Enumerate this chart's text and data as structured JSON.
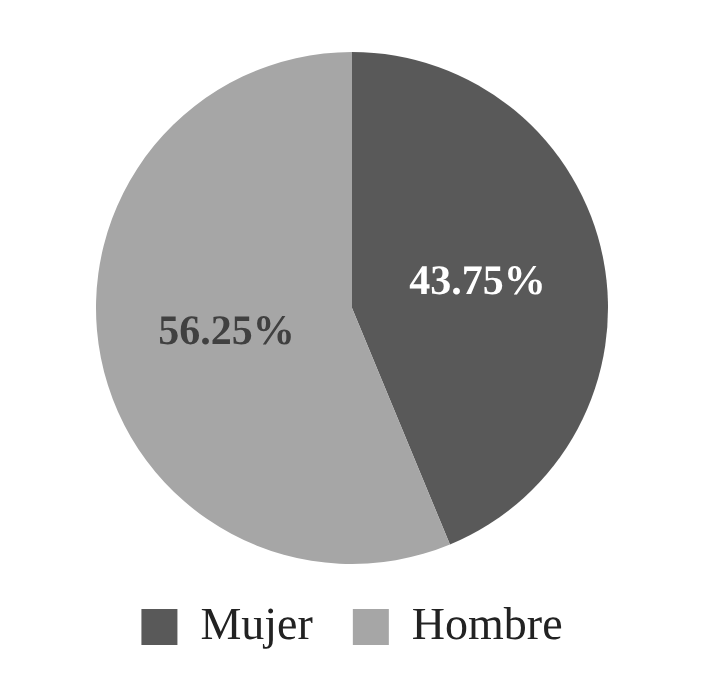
{
  "chart_data": {
    "type": "pie",
    "categories": [
      "Mujer",
      "Hombre"
    ],
    "values": [
      43.75,
      56.25
    ],
    "colors": [
      "#595959",
      "#a6a6a6"
    ],
    "value_labels": [
      "43.75%",
      "56.25%"
    ],
    "legend": "bottom"
  }
}
